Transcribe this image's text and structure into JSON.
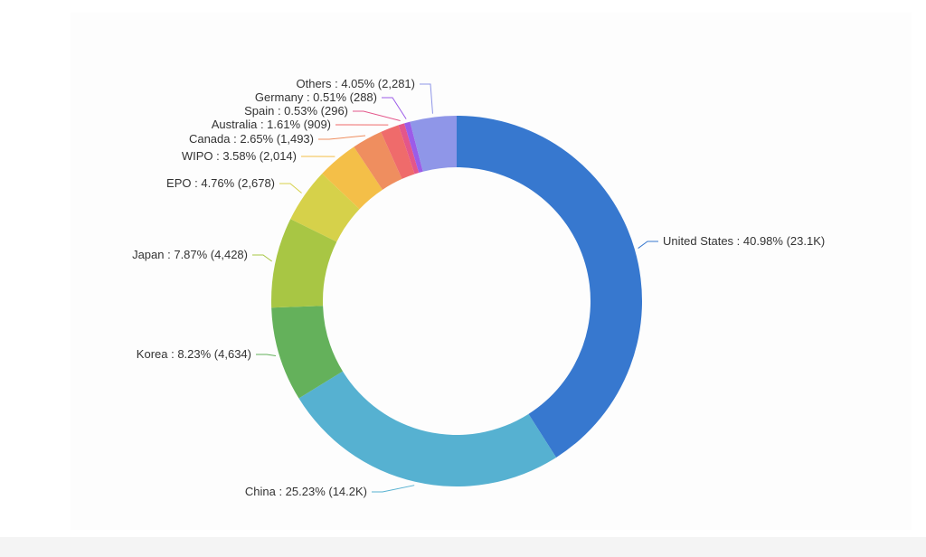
{
  "chart_data": {
    "type": "pie",
    "donut": true,
    "title": "",
    "slices": [
      {
        "name": "United States",
        "percent": 40.98,
        "value_label": "23.1K",
        "label": "United States : 40.98% (23.1K)",
        "color": "#3778cf"
      },
      {
        "name": "China",
        "percent": 25.23,
        "value_label": "14.2K",
        "label": "China : 25.23% (14.2K)",
        "color": "#56b1d1"
      },
      {
        "name": "Korea",
        "percent": 8.23,
        "value_label": "4,634",
        "label": "Korea : 8.23% (4,634)",
        "color": "#64b15b"
      },
      {
        "name": "Japan",
        "percent": 7.87,
        "value_label": "4,428",
        "label": "Japan : 7.87% (4,428)",
        "color": "#a8c644"
      },
      {
        "name": "EPO",
        "percent": 4.76,
        "value_label": "2,678",
        "label": "EPO : 4.76% (2,678)",
        "color": "#d6d14a"
      },
      {
        "name": "WIPO",
        "percent": 3.58,
        "value_label": "2,014",
        "label": "WIPO : 3.58% (2,014)",
        "color": "#f4bf48"
      },
      {
        "name": "Canada",
        "percent": 2.65,
        "value_label": "1,493",
        "label": "Canada : 2.65% (1,493)",
        "color": "#ef8e5f"
      },
      {
        "name": "Australia",
        "percent": 1.61,
        "value_label": "909",
        "label": "Australia : 1.61% (909)",
        "color": "#ef6b6b"
      },
      {
        "name": "Spain",
        "percent": 0.53,
        "value_label": "296",
        "label": "Spain : 0.53% (296)",
        "color": "#e4568a"
      },
      {
        "name": "Germany",
        "percent": 0.51,
        "value_label": "288",
        "label": "Germany : 0.51% (288)",
        "color": "#9c5ce8"
      },
      {
        "name": "Others",
        "percent": 4.05,
        "value_label": "2,281",
        "label": "Others : 4.05% (2,281)",
        "color": "#8f96e8"
      }
    ]
  }
}
